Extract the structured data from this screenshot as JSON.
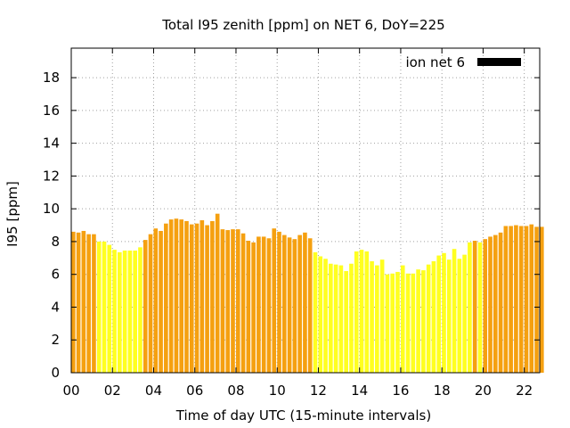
{
  "chart_data": {
    "type": "bar",
    "title": "Total I95 zenith [ppm] on NET 6, DoY=225",
    "xlabel": "Time of day UTC (15-minute intervals)",
    "ylabel": "I95 [ppm]",
    "xlim": [
      0,
      22.75
    ],
    "ylim": [
      0,
      19.8
    ],
    "interval_hours": 0.25,
    "x_ticks": [
      0,
      2,
      4,
      6,
      8,
      10,
      12,
      14,
      16,
      18,
      20,
      22
    ],
    "x_tick_labels": [
      "00",
      "02",
      "04",
      "06",
      "08",
      "10",
      "12",
      "14",
      "16",
      "18",
      "20",
      "22"
    ],
    "y_ticks": [
      0,
      2,
      4,
      6,
      8,
      10,
      12,
      14,
      16,
      18
    ],
    "y_tick_labels": [
      "0",
      "2",
      "4",
      "6",
      "8",
      "10",
      "12",
      "14",
      "16",
      "18"
    ],
    "grid": true,
    "legend": {
      "label": "ion net 6",
      "position": "top-right",
      "color": "#000000"
    },
    "colors": {
      "high": "#f5a010",
      "low": "#ffff20"
    },
    "series": [
      {
        "values": [
          8.6,
          8.55,
          8.65,
          8.45,
          8.45,
          8.0,
          8.0,
          7.8,
          7.5,
          7.35,
          7.45,
          7.45,
          7.45,
          7.65,
          8.1,
          8.45,
          8.8,
          8.65,
          9.1,
          9.35,
          9.4,
          9.35,
          9.25,
          9.05,
          9.1,
          9.3,
          9.0,
          9.25,
          9.7,
          8.75,
          8.7,
          8.75,
          8.75,
          8.5,
          8.05,
          7.95,
          8.3,
          8.3,
          8.2,
          8.8,
          8.6,
          8.4,
          8.25,
          8.15,
          8.4,
          8.55,
          8.2,
          7.35,
          7.1,
          6.95,
          6.65,
          6.6,
          6.55,
          6.2,
          6.65,
          7.4,
          7.5,
          7.4,
          6.8,
          6.55,
          6.9,
          6.0,
          6.05,
          6.15,
          6.55,
          6.05,
          6.05,
          6.3,
          6.25,
          6.6,
          6.8,
          7.15,
          7.3,
          6.9,
          7.55,
          6.95,
          7.2,
          7.95,
          8.05,
          7.95,
          8.15,
          8.3,
          8.4,
          8.55,
          8.95,
          8.95,
          9.0,
          8.95,
          8.95,
          9.05,
          8.9,
          8.9
        ],
        "colors": [
          "high",
          "high",
          "high",
          "high",
          "high",
          "low",
          "low",
          "low",
          "low",
          "low",
          "low",
          "low",
          "low",
          "low",
          "high",
          "high",
          "high",
          "high",
          "high",
          "high",
          "high",
          "high",
          "high",
          "high",
          "high",
          "high",
          "high",
          "high",
          "high",
          "high",
          "high",
          "high",
          "high",
          "high",
          "high",
          "high",
          "high",
          "high",
          "high",
          "high",
          "high",
          "high",
          "high",
          "high",
          "high",
          "high",
          "high",
          "low",
          "low",
          "low",
          "low",
          "low",
          "low",
          "low",
          "low",
          "low",
          "low",
          "low",
          "low",
          "low",
          "low",
          "low",
          "low",
          "low",
          "low",
          "low",
          "low",
          "low",
          "low",
          "low",
          "low",
          "low",
          "low",
          "low",
          "low",
          "low",
          "low",
          "low",
          "high",
          "low",
          "high",
          "high",
          "high",
          "high",
          "high",
          "high",
          "high",
          "high",
          "high",
          "high",
          "high",
          "high"
        ]
      }
    ]
  }
}
